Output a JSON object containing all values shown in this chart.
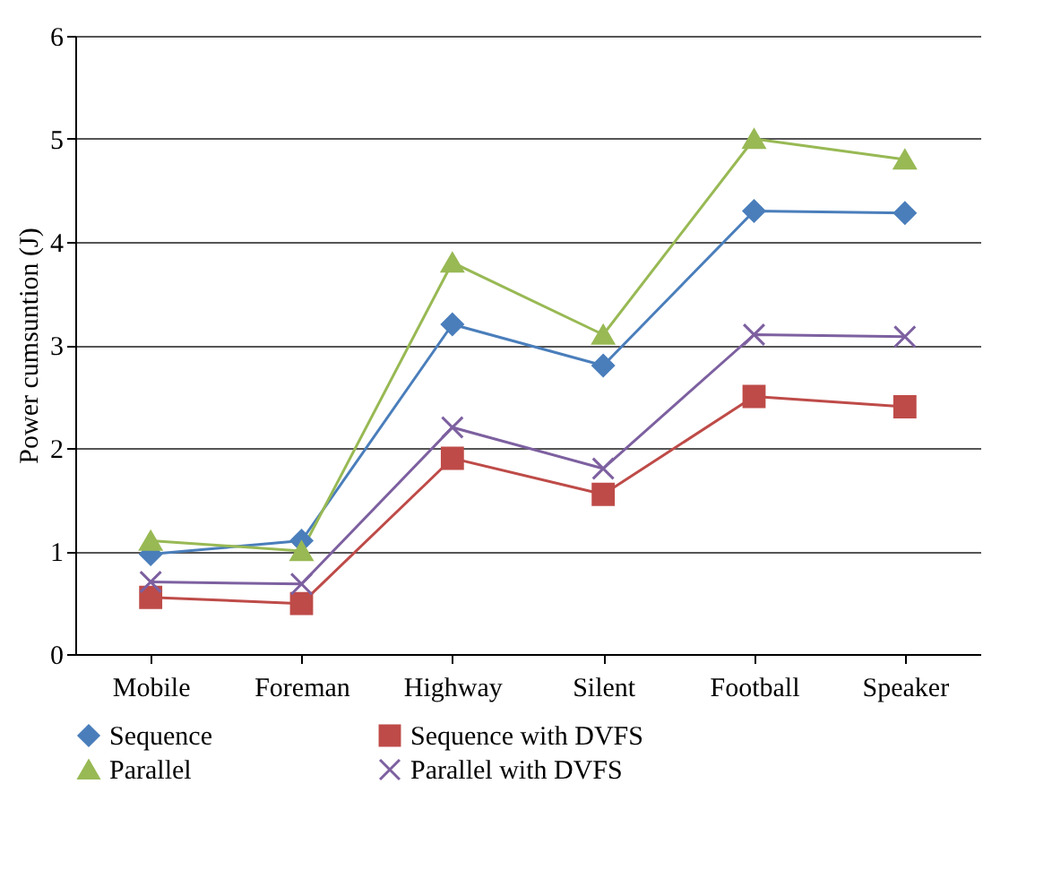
{
  "chart_data": {
    "type": "line",
    "ylabel": "Power cumsuntion (J)",
    "categories": [
      "Mobile",
      "Foreman",
      "Highway",
      "Silent",
      "Football",
      "Speaker"
    ],
    "ylim": [
      0,
      6
    ],
    "yticks": [
      0,
      1,
      2,
      3,
      4,
      5,
      6
    ],
    "grid": "y",
    "legend": "bottom",
    "series": [
      {
        "name": "Sequence",
        "color": "#4a7ebb",
        "marker": "diamond",
        "values": [
          0.97,
          1.1,
          3.2,
          2.8,
          4.3,
          4.28
        ]
      },
      {
        "name": "Sequence with DVFS",
        "color": "#be4b48",
        "marker": "square",
        "values": [
          0.55,
          0.49,
          1.9,
          1.55,
          2.5,
          2.4
        ]
      },
      {
        "name": "Parallel",
        "color": "#98b954",
        "marker": "triangle",
        "values": [
          1.1,
          1.0,
          3.8,
          3.1,
          5.0,
          4.8
        ]
      },
      {
        "name": "Parallel with DVFS",
        "color": "#7d60a0",
        "marker": "cross",
        "values": [
          0.7,
          0.68,
          2.2,
          1.8,
          3.1,
          3.08
        ]
      }
    ]
  }
}
